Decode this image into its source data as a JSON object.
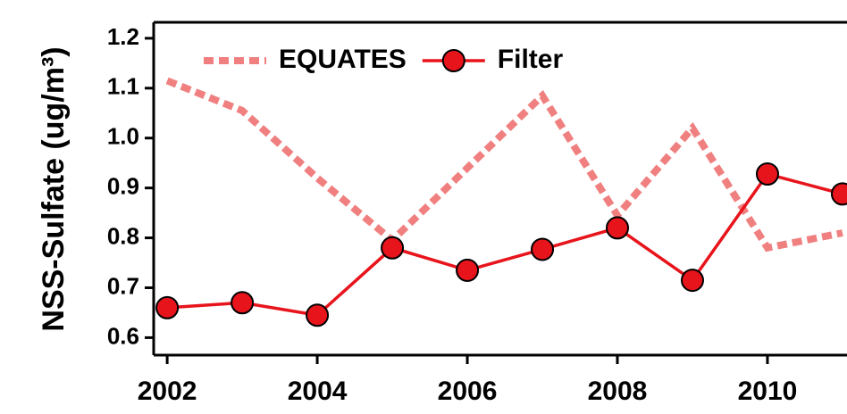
{
  "chart_data": {
    "type": "line",
    "ylabel": "NSS-Sulfate (ug/m³)",
    "x": [
      2002,
      2003,
      2004,
      2005,
      2006,
      2007,
      2008,
      2009,
      2010,
      2011
    ],
    "series": [
      {
        "name": "EQUATES",
        "color": "#f08080",
        "style": "dashed",
        "marker": false,
        "values": [
          1.115,
          1.055,
          0.92,
          0.795,
          0.94,
          1.085,
          0.845,
          1.02,
          0.78,
          0.81
        ]
      },
      {
        "name": "Filter",
        "color": "#e8141c",
        "style": "solid",
        "marker": true,
        "values": [
          0.66,
          0.67,
          0.645,
          0.78,
          0.735,
          0.777,
          0.82,
          0.715,
          0.928,
          0.888
        ]
      }
    ],
    "xlim": [
      2001.82,
      2011.06
    ],
    "ylim": [
      0.565,
      1.232
    ],
    "xticks": [
      2002,
      2004,
      2006,
      2008,
      2010
    ],
    "yticks": [
      0.6,
      0.7,
      0.8,
      0.9,
      {
        "value": 1,
        "label": "1.0"
      },
      1.1,
      1.2
    ],
    "legend": "upper left",
    "grid": false
  }
}
